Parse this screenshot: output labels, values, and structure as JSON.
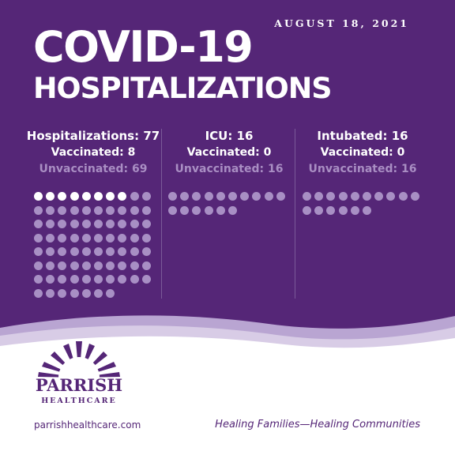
{
  "header": {
    "date": "AUGUST 18, 2021",
    "title_line1": "COVID-19",
    "title_line2": "HOSPITALIZATIONS"
  },
  "stats": [
    {
      "heading": "Hospitalizations: 77",
      "vaccinated": "Vaccinated: 8",
      "unvaccinated": "Unvaccinated: 69",
      "total": 77,
      "vaccinated_count": 8
    },
    {
      "heading": "ICU: 16",
      "vaccinated": "Vaccinated: 0",
      "unvaccinated": "Unvaccinated: 16",
      "total": 16,
      "vaccinated_count": 0
    },
    {
      "heading": "Intubated: 16",
      "vaccinated": "Vaccinated: 0",
      "unvaccinated": "Unvaccinated: 16",
      "total": 16,
      "vaccinated_count": 0
    }
  ],
  "colors": {
    "brand_purple": "#552677",
    "dot_vaccinated": "#ffffff",
    "dot_unvaccinated": "#a88fc4",
    "unvaccinated_text": "#a98ec3"
  },
  "footer": {
    "logo_name": "PARRISH",
    "logo_sub": "HEALTHCARE",
    "url": "parrishhealthcare.com",
    "tagline": "Healing Families—Healing Communities"
  }
}
